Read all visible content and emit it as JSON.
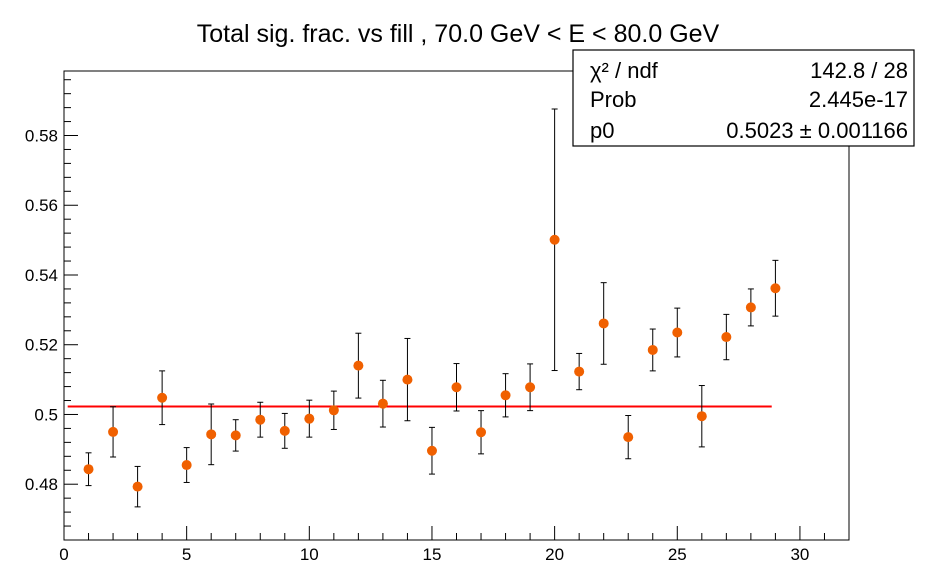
{
  "chart_data": {
    "type": "scatter",
    "title": "Total sig. frac. vs fill , 70.0 GeV < E < 80.0 GeV",
    "xlabel": "",
    "ylabel": "",
    "xlim": [
      0,
      32
    ],
    "ylim": [
      0.464,
      0.5985
    ],
    "x_ticks": [
      0,
      5,
      10,
      15,
      20,
      25,
      30
    ],
    "x_tick_labels": [
      "0",
      "5",
      "10",
      "15",
      "20",
      "25",
      "30"
    ],
    "y_ticks": [
      0.48,
      0.5,
      0.52,
      0.54,
      0.56,
      0.58
    ],
    "y_tick_labels": [
      "0.48",
      "0.5",
      "0.52",
      "0.54",
      "0.56",
      "0.58"
    ],
    "grid": false,
    "series": [
      {
        "marker_color": "#f06000",
        "points": [
          {
            "x": 1,
            "y": 0.4843,
            "err": 0.0047
          },
          {
            "x": 2,
            "y": 0.495,
            "err": 0.0072
          },
          {
            "x": 3,
            "y": 0.4793,
            "err": 0.0058
          },
          {
            "x": 4,
            "y": 0.5048,
            "err": 0.0077
          },
          {
            "x": 5,
            "y": 0.4855,
            "err": 0.005
          },
          {
            "x": 6,
            "y": 0.4943,
            "err": 0.0087
          },
          {
            "x": 7,
            "y": 0.494,
            "err": 0.0045
          },
          {
            "x": 8,
            "y": 0.4985,
            "err": 0.005
          },
          {
            "x": 9,
            "y": 0.4953,
            "err": 0.005
          },
          {
            "x": 10,
            "y": 0.4988,
            "err": 0.0053
          },
          {
            "x": 11,
            "y": 0.5012,
            "err": 0.0055
          },
          {
            "x": 12,
            "y": 0.514,
            "err": 0.0093
          },
          {
            "x": 13,
            "y": 0.5031,
            "err": 0.0067
          },
          {
            "x": 14,
            "y": 0.51,
            "err": 0.0118
          },
          {
            "x": 15,
            "y": 0.4896,
            "err": 0.0067
          },
          {
            "x": 16,
            "y": 0.5078,
            "err": 0.0068
          },
          {
            "x": 17,
            "y": 0.4949,
            "err": 0.0062
          },
          {
            "x": 18,
            "y": 0.5055,
            "err": 0.0062
          },
          {
            "x": 19,
            "y": 0.5078,
            "err": 0.0067
          },
          {
            "x": 20,
            "y": 0.5501,
            "err": 0.0375
          },
          {
            "x": 21,
            "y": 0.5123,
            "err": 0.0052
          },
          {
            "x": 22,
            "y": 0.5261,
            "err": 0.0117
          },
          {
            "x": 23,
            "y": 0.4935,
            "err": 0.0062
          },
          {
            "x": 24,
            "y": 0.5185,
            "err": 0.006
          },
          {
            "x": 25,
            "y": 0.5235,
            "err": 0.007
          },
          {
            "x": 26,
            "y": 0.4995,
            "err": 0.0088
          },
          {
            "x": 27,
            "y": 0.5222,
            "err": 0.0065
          },
          {
            "x": 28,
            "y": 0.5307,
            "err": 0.0053
          },
          {
            "x": 29,
            "y": 0.5362,
            "err": 0.008
          }
        ]
      }
    ],
    "fit": {
      "color": "#ff0000",
      "x_range": [
        0.15,
        28.85
      ],
      "p0_value": 0.5023
    },
    "stats_box": {
      "position": "top-right",
      "rows": [
        {
          "label": "χ² / ndf",
          "value": "142.8 / 28"
        },
        {
          "label": "Prob",
          "value": "2.445e-17"
        },
        {
          "label": "p0",
          "value": "0.5023 ± 0.001166"
        }
      ]
    }
  }
}
